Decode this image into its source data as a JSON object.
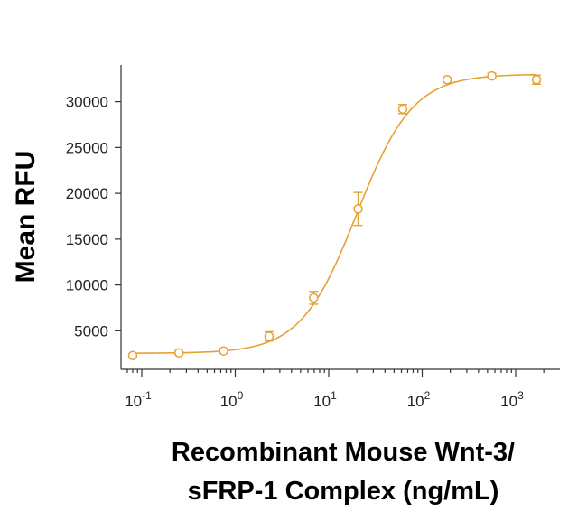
{
  "chart_data": {
    "type": "scatter",
    "title": "",
    "xscale": "log",
    "xlim": [
      0.05,
      3000
    ],
    "ylim": [
      800,
      34000
    ],
    "ylabel": "Mean RFU",
    "xlabel_lines": [
      "Recombinant Mouse Wnt-3/",
      "sFRP-1 Complex (ng/mL)"
    ],
    "yticks": [
      5000,
      10000,
      15000,
      20000,
      25000,
      30000
    ],
    "ytick_labels": [
      "5000",
      "10000",
      "15000",
      "20000",
      "25000",
      "30000"
    ],
    "xticks": [
      {
        "value": 0.1,
        "base": "10",
        "exp": "-1"
      },
      {
        "value": 1,
        "base": "10",
        "exp": "0"
      },
      {
        "value": 10,
        "base": "10",
        "exp": "1"
      },
      {
        "value": 100,
        "base": "10",
        "exp": "2"
      },
      {
        "value": 1000,
        "base": "10",
        "exp": "3"
      }
    ],
    "grid": false,
    "color": "#E8A033",
    "series": [
      {
        "points": [
          {
            "x": 0.08,
            "y": 2300,
            "err": 100
          },
          {
            "x": 0.25,
            "y": 2600,
            "err": 150
          },
          {
            "x": 0.75,
            "y": 2800,
            "err": 250
          },
          {
            "x": 2.3,
            "y": 4400,
            "err": 500
          },
          {
            "x": 6.9,
            "y": 8600,
            "err": 700
          },
          {
            "x": 20.6,
            "y": 18300,
            "err": 1800
          },
          {
            "x": 62,
            "y": 29200,
            "err": 500
          },
          {
            "x": 185,
            "y": 32400,
            "err": 200
          },
          {
            "x": 556,
            "y": 32800,
            "err": 300
          },
          {
            "x": 1670,
            "y": 32400,
            "err": 500
          }
        ],
        "fit": {
          "bottom": 2550,
          "top": 33000,
          "ec50": 20,
          "hill": 1.45
        }
      }
    ]
  }
}
